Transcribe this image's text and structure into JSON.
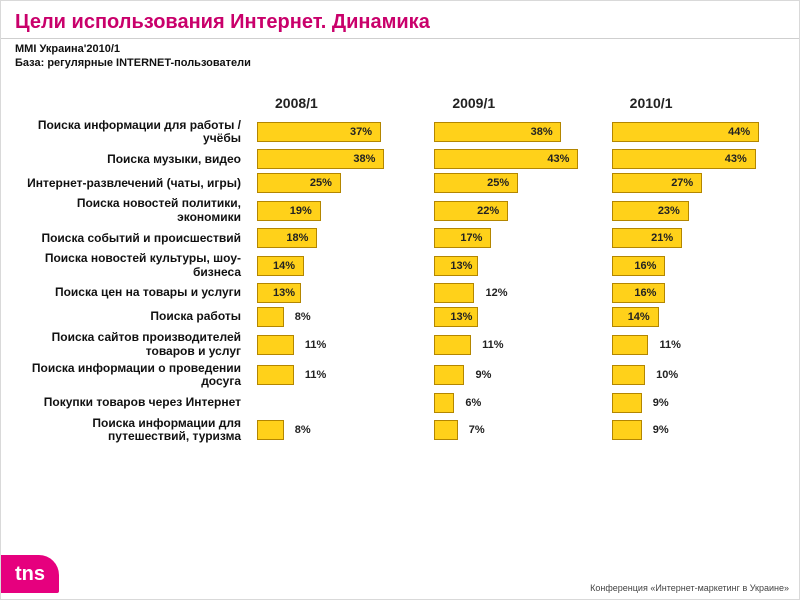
{
  "title": "Цели использования Интернет. Динамика",
  "title_color": "#c9006b",
  "title_fontsize": 20,
  "subtitle_line1": "MMI Украина'2010/1",
  "subtitle_line2": "База: регулярные INTERNET-пользователи",
  "subtitle_fontsize": 11,
  "columns": [
    "2008/1",
    "2009/1",
    "2010/1"
  ],
  "column_header_fontsize": 14,
  "category_fontsize": 12,
  "value_fontsize": 11,
  "bar_fill": "#ffd11a",
  "bar_border": "#b38600",
  "bar_max_percent": 50,
  "categories": [
    {
      "label": "Поиска информации для работы / учёбы",
      "values": [
        37,
        38,
        44
      ]
    },
    {
      "label": "Поиска музыки, видео",
      "values": [
        38,
        43,
        43
      ]
    },
    {
      "label": "Интернет-развлечений (чаты, игры)",
      "values": [
        25,
        25,
        27
      ]
    },
    {
      "label": "Поиска новостей политики, экономики",
      "values": [
        19,
        22,
        23
      ]
    },
    {
      "label": "Поиска событий и происшествий",
      "values": [
        18,
        17,
        21
      ]
    },
    {
      "label": "Поиска новостей культуры, шоу-бизнеса",
      "values": [
        14,
        13,
        16
      ]
    },
    {
      "label": "Поиска цен на товары и услуги",
      "values": [
        13,
        12,
        16
      ]
    },
    {
      "label": "Поиска работы",
      "values": [
        8,
        13,
        14
      ]
    },
    {
      "label": "Поиска сайтов производителей товаров и услуг",
      "values": [
        11,
        11,
        11
      ]
    },
    {
      "label": "Поиска информации о проведении досуга",
      "values": [
        11,
        9,
        10
      ]
    },
    {
      "label": "Покупки товаров через Интернет",
      "values": [
        null,
        6,
        9
      ]
    },
    {
      "label": "Поиска информации для путешествий, туризма",
      "values": [
        8,
        7,
        9
      ]
    }
  ],
  "logo_text": "tns",
  "logo_bg": "#e6007e",
  "footer_text": "Конференция «Интернет-маркетинг в Украине»",
  "footer_fontsize": 9
}
